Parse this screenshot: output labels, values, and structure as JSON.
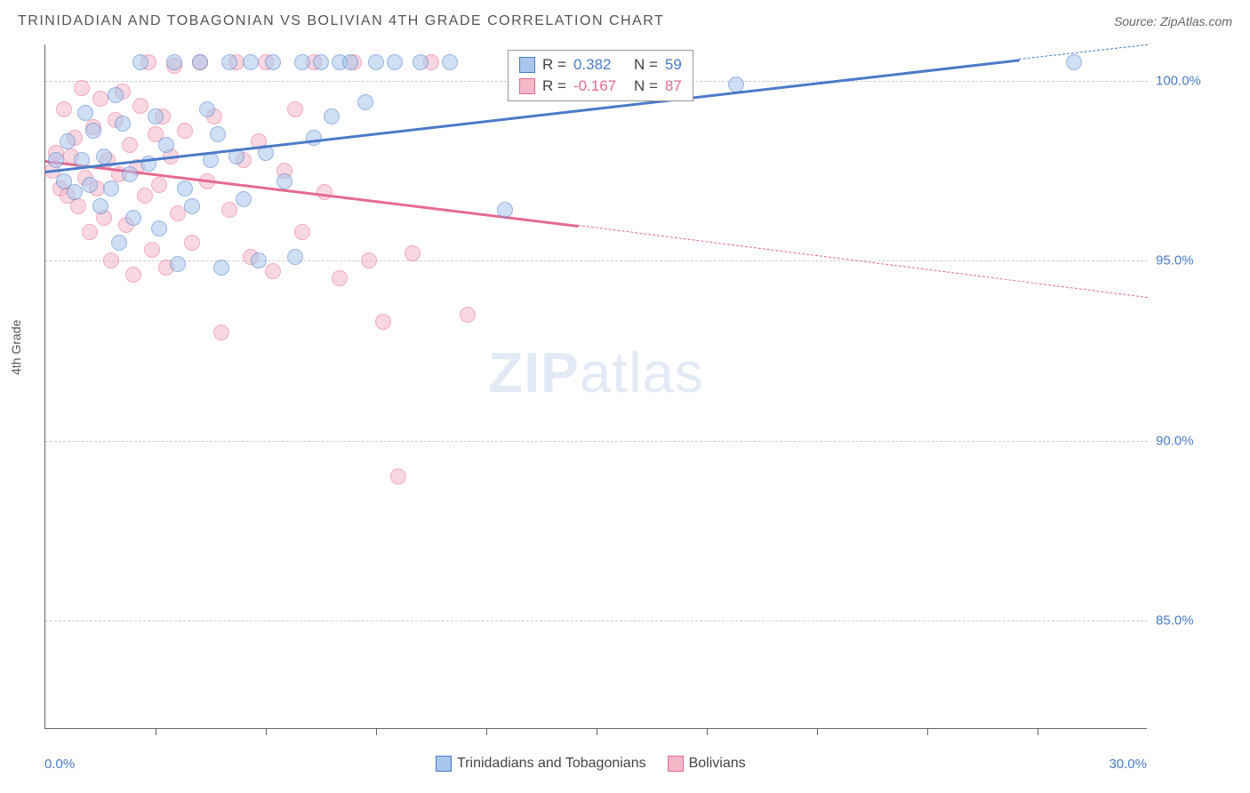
{
  "header": {
    "title": "TRINIDADIAN AND TOBAGONIAN VS BOLIVIAN 4TH GRADE CORRELATION CHART",
    "source": "Source: ZipAtlas.com"
  },
  "chart": {
    "type": "scatter",
    "watermark_main": "ZIP",
    "watermark_sub": "atlas",
    "y_axis_title": "4th Grade",
    "xlim": [
      0,
      30
    ],
    "ylim": [
      82,
      101
    ],
    "x_tick_step": 3,
    "y_ticks": [
      85.0,
      90.0,
      95.0,
      100.0
    ],
    "x_label_min": "0.0%",
    "x_label_max": "30.0%",
    "y_tick_labels": [
      "85.0%",
      "90.0%",
      "95.0%",
      "100.0%"
    ],
    "grid_color": "#cccccc",
    "background_color": "#ffffff",
    "series": [
      {
        "name": "Trinidadians and Tobagonians",
        "color_fill": "#a9c6ed",
        "color_stroke": "#4a7bc8",
        "R": "0.382",
        "N": "59",
        "trend": {
          "x1": 0,
          "y1": 97.5,
          "x2": 26.5,
          "y2": 100.6,
          "dash_to_x": 30,
          "dash_to_y": 101
        },
        "points": [
          [
            0.3,
            97.8
          ],
          [
            0.5,
            97.2
          ],
          [
            0.6,
            98.3
          ],
          [
            0.8,
            96.9
          ],
          [
            1.0,
            97.8
          ],
          [
            1.1,
            99.1
          ],
          [
            1.2,
            97.1
          ],
          [
            1.3,
            98.6
          ],
          [
            1.5,
            96.5
          ],
          [
            1.6,
            97.9
          ],
          [
            1.8,
            97.0
          ],
          [
            1.9,
            99.6
          ],
          [
            2.0,
            95.5
          ],
          [
            2.1,
            98.8
          ],
          [
            2.3,
            97.4
          ],
          [
            2.4,
            96.2
          ],
          [
            2.6,
            100.5
          ],
          [
            2.8,
            97.7
          ],
          [
            3.0,
            99.0
          ],
          [
            3.1,
            95.9
          ],
          [
            3.3,
            98.2
          ],
          [
            3.5,
            100.5
          ],
          [
            3.6,
            94.9
          ],
          [
            3.8,
            97.0
          ],
          [
            4.0,
            96.5
          ],
          [
            4.2,
            100.5
          ],
          [
            4.4,
            99.2
          ],
          [
            4.5,
            97.8
          ],
          [
            4.7,
            98.5
          ],
          [
            4.8,
            94.8
          ],
          [
            5.0,
            100.5
          ],
          [
            5.2,
            97.9
          ],
          [
            5.4,
            96.7
          ],
          [
            5.6,
            100.5
          ],
          [
            5.8,
            95.0
          ],
          [
            6.0,
            98.0
          ],
          [
            6.2,
            100.5
          ],
          [
            6.5,
            97.2
          ],
          [
            6.8,
            95.1
          ],
          [
            7.0,
            100.5
          ],
          [
            7.3,
            98.4
          ],
          [
            7.5,
            100.5
          ],
          [
            7.8,
            99.0
          ],
          [
            8.0,
            100.5
          ],
          [
            8.3,
            100.5
          ],
          [
            8.7,
            99.4
          ],
          [
            9.0,
            100.5
          ],
          [
            9.5,
            100.5
          ],
          [
            10.2,
            100.5
          ],
          [
            11.0,
            100.5
          ],
          [
            12.5,
            96.4
          ],
          [
            13.0,
            100.5
          ],
          [
            18.8,
            99.9
          ],
          [
            28.0,
            100.5
          ]
        ]
      },
      {
        "name": "Bolivians",
        "color_fill": "#f4b8c9",
        "color_stroke": "#e66a8f",
        "R": "-0.167",
        "N": "87",
        "trend": {
          "x1": 0,
          "y1": 97.8,
          "x2": 14.5,
          "y2": 96.0,
          "dash_to_x": 30,
          "dash_to_y": 94.0
        },
        "points": [
          [
            0.2,
            97.5
          ],
          [
            0.3,
            98.0
          ],
          [
            0.4,
            97.0
          ],
          [
            0.5,
            99.2
          ],
          [
            0.6,
            96.8
          ],
          [
            0.7,
            97.9
          ],
          [
            0.8,
            98.4
          ],
          [
            0.9,
            96.5
          ],
          [
            1.0,
            99.8
          ],
          [
            1.1,
            97.3
          ],
          [
            1.2,
            95.8
          ],
          [
            1.3,
            98.7
          ],
          [
            1.4,
            97.0
          ],
          [
            1.5,
            99.5
          ],
          [
            1.6,
            96.2
          ],
          [
            1.7,
            97.8
          ],
          [
            1.8,
            95.0
          ],
          [
            1.9,
            98.9
          ],
          [
            2.0,
            97.4
          ],
          [
            2.1,
            99.7
          ],
          [
            2.2,
            96.0
          ],
          [
            2.3,
            98.2
          ],
          [
            2.4,
            94.6
          ],
          [
            2.5,
            97.6
          ],
          [
            2.6,
            99.3
          ],
          [
            2.7,
            96.8
          ],
          [
            2.8,
            100.5
          ],
          [
            2.9,
            95.3
          ],
          [
            3.0,
            98.5
          ],
          [
            3.1,
            97.1
          ],
          [
            3.2,
            99.0
          ],
          [
            3.3,
            94.8
          ],
          [
            3.4,
            97.9
          ],
          [
            3.5,
            100.4
          ],
          [
            3.6,
            96.3
          ],
          [
            3.8,
            98.6
          ],
          [
            4.0,
            95.5
          ],
          [
            4.2,
            100.5
          ],
          [
            4.4,
            97.2
          ],
          [
            4.6,
            99.0
          ],
          [
            4.8,
            93.0
          ],
          [
            5.0,
            96.4
          ],
          [
            5.2,
            100.5
          ],
          [
            5.4,
            97.8
          ],
          [
            5.6,
            95.1
          ],
          [
            5.8,
            98.3
          ],
          [
            6.0,
            100.5
          ],
          [
            6.2,
            94.7
          ],
          [
            6.5,
            97.5
          ],
          [
            6.8,
            99.2
          ],
          [
            7.0,
            95.8
          ],
          [
            7.3,
            100.5
          ],
          [
            7.6,
            96.9
          ],
          [
            8.0,
            94.5
          ],
          [
            8.4,
            100.5
          ],
          [
            8.8,
            95.0
          ],
          [
            9.2,
            93.3
          ],
          [
            9.6,
            89.0
          ],
          [
            10.0,
            95.2
          ],
          [
            10.5,
            100.5
          ],
          [
            11.5,
            93.5
          ],
          [
            13.5,
            100.5
          ],
          [
            14.3,
            100.5
          ]
        ]
      }
    ],
    "legend_labels": {
      "R_prefix": "R = ",
      "N_prefix": "N = "
    }
  }
}
